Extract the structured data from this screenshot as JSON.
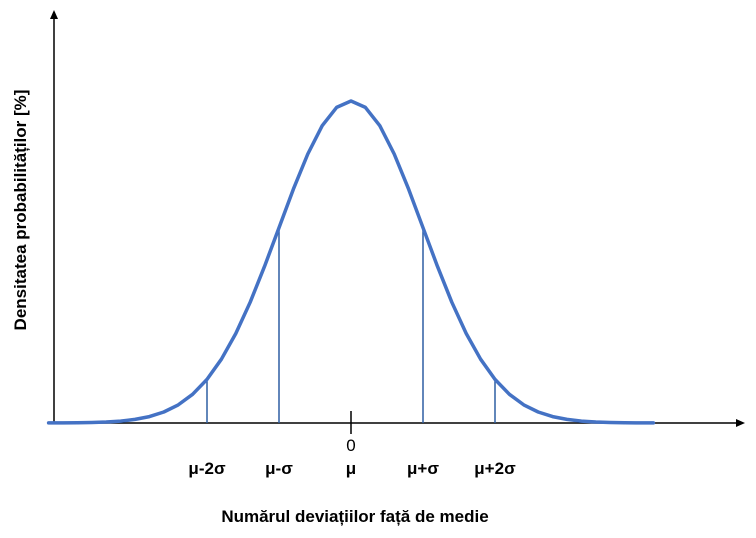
{
  "chart_data": {
    "type": "line",
    "xlabel": "Numărul deviațiilor față de medie",
    "ylabel": "Densitatea probabilităților [%]",
    "zero_label": "0",
    "xlim": [
      -4.3,
      4.3
    ],
    "ylim": [
      0,
      0.448
    ],
    "grid": false,
    "curve": {
      "x": [
        -4.2,
        -4.0,
        -3.8,
        -3.6,
        -3.4,
        -3.2,
        -3.0,
        -2.8,
        -2.6,
        -2.4,
        -2.2,
        -2.0,
        -1.8,
        -1.6,
        -1.4,
        -1.2,
        -1.0,
        -0.8,
        -0.6,
        -0.4,
        -0.2,
        0.0,
        0.2,
        0.4,
        0.6,
        0.8,
        1.0,
        1.2,
        1.4,
        1.6,
        1.8,
        2.0,
        2.2,
        2.4,
        2.6,
        2.8,
        3.0,
        3.2,
        3.4,
        3.6,
        3.8,
        4.0,
        4.2
      ],
      "y": [
        0.0001,
        0.0001,
        0.0003,
        0.0006,
        0.0012,
        0.0024,
        0.0044,
        0.0079,
        0.0136,
        0.0224,
        0.0355,
        0.054,
        0.079,
        0.1109,
        0.1497,
        0.1942,
        0.242,
        0.2897,
        0.3332,
        0.3683,
        0.391,
        0.3989,
        0.391,
        0.3683,
        0.3332,
        0.2897,
        0.242,
        0.1942,
        0.1497,
        0.1109,
        0.079,
        0.054,
        0.0355,
        0.0224,
        0.0136,
        0.0079,
        0.0044,
        0.0024,
        0.0012,
        0.0006,
        0.0003,
        0.0001,
        0.0001
      ],
      "color": "#4472C4"
    },
    "markers": [
      {
        "x": -2,
        "label": "μ-2σ"
      },
      {
        "x": -1,
        "label": "μ-σ"
      },
      {
        "x": 0,
        "label": "μ"
      },
      {
        "x": 1,
        "label": "μ+σ"
      },
      {
        "x": 2,
        "label": "μ+2σ"
      }
    ],
    "axis_color": "#000000",
    "marker_line_color": "#2E5FA3"
  }
}
